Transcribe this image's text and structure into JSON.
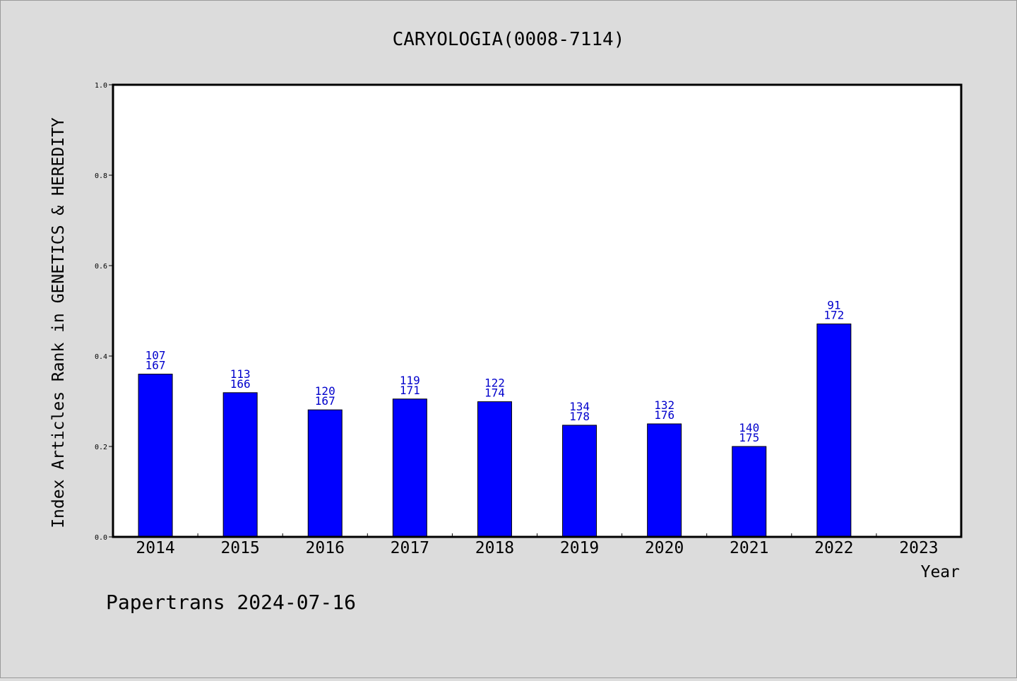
{
  "chart_data": {
    "type": "bar",
    "title": "CARYOLOGIA(0008-7114)",
    "xlabel": "Year",
    "ylabel": "Index Articles Rank in GENETICS & HEREDITY",
    "footer": "Papertrans 2024-07-16",
    "ylim": [
      0,
      1.0
    ],
    "yticks": [
      "0.0",
      "0.2",
      "0.4",
      "0.6",
      "0.8",
      "1.0"
    ],
    "grid": false,
    "categories": [
      "2014",
      "2015",
      "2016",
      "2017",
      "2018",
      "2019",
      "2020",
      "2021",
      "2022",
      "2023"
    ],
    "values": [
      0.36,
      0.319,
      0.281,
      0.305,
      0.299,
      0.247,
      0.25,
      0.2,
      0.471,
      null
    ],
    "rank_labels": [
      "107",
      "113",
      "120",
      "119",
      "122",
      "134",
      "132",
      "140",
      "91",
      null
    ],
    "total_labels": [
      "167",
      "166",
      "167",
      "171",
      "174",
      "178",
      "176",
      "175",
      "172",
      null
    ],
    "colors": {
      "bar": "#0000ff",
      "label": "#0000cc",
      "background": "#dcdcdc",
      "plot": "#ffffff"
    }
  }
}
